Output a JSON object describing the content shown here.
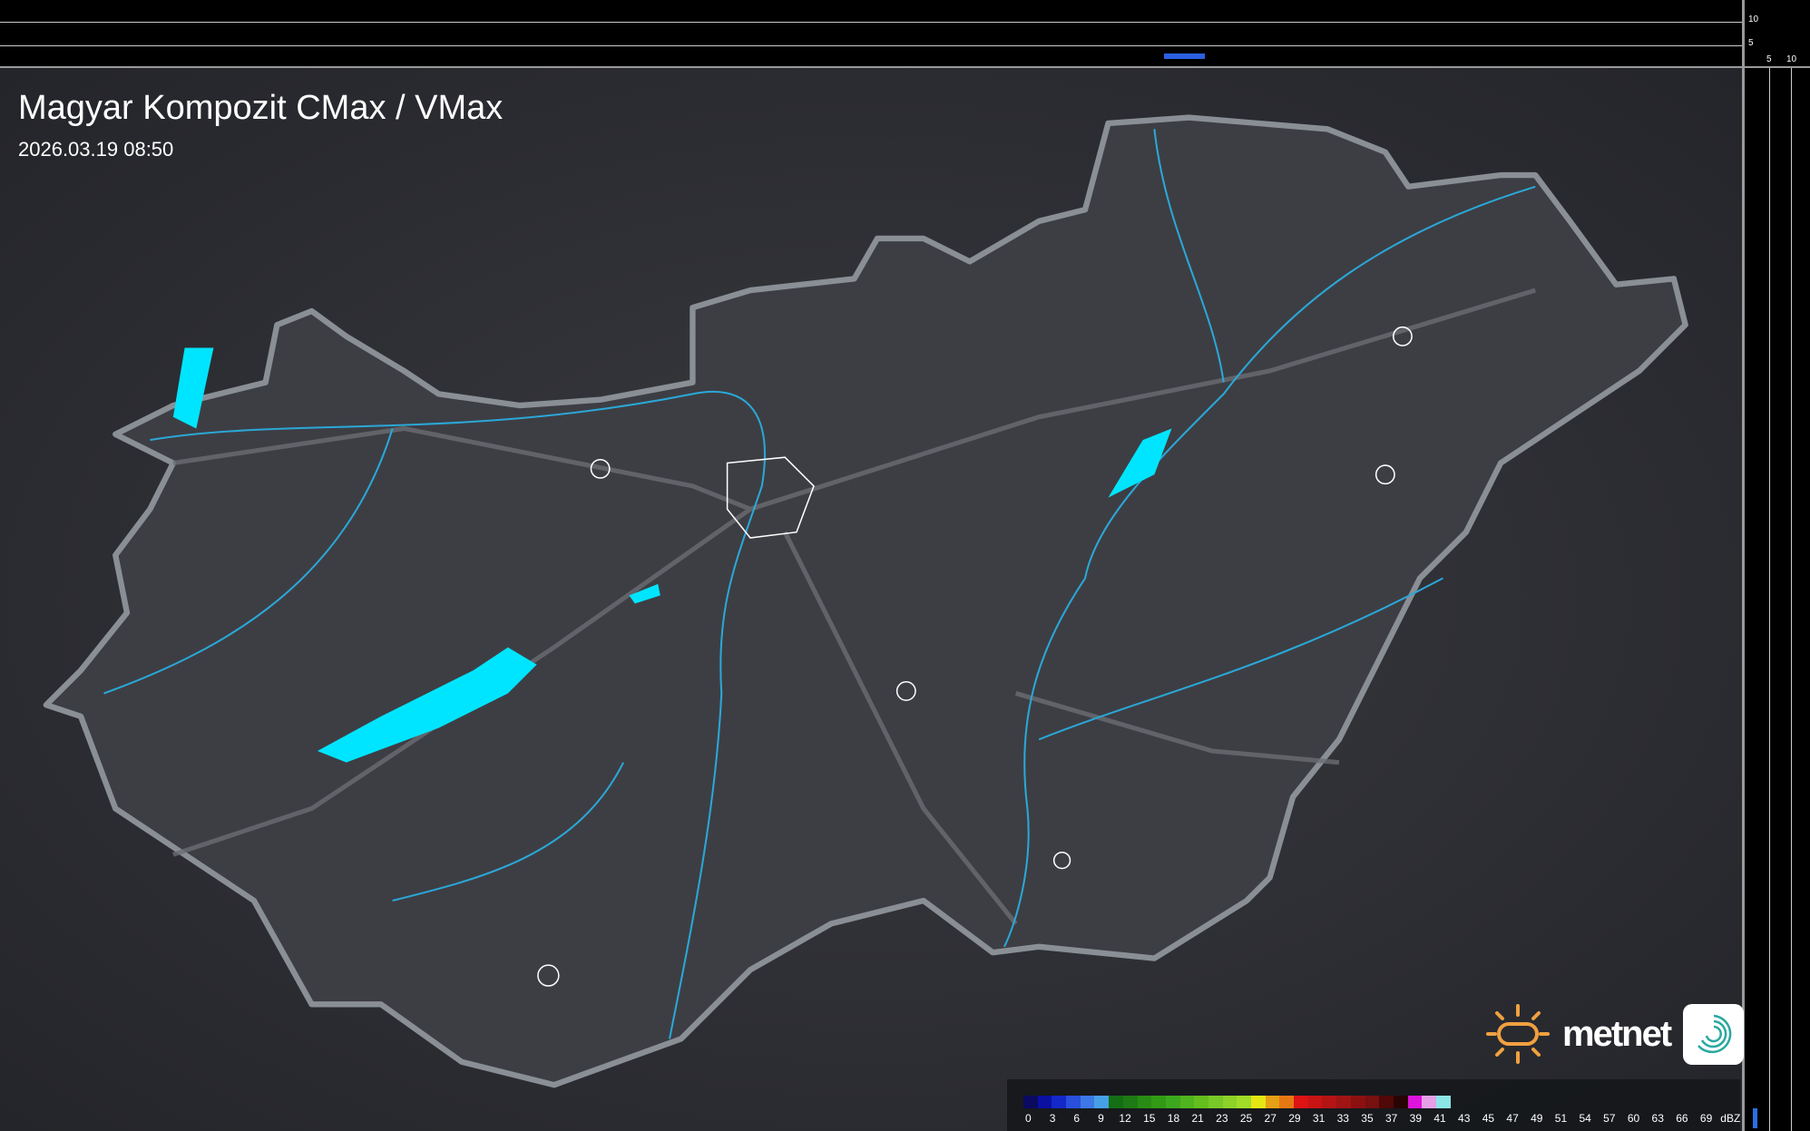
{
  "title": "Magyar Kompozit CMax / VMax",
  "timestamp": "2026.03.19 08:50",
  "top_profile": {
    "ticks": [
      "10",
      "5"
    ]
  },
  "side_profile": {
    "ticks": [
      "5",
      "10"
    ]
  },
  "legend": {
    "unit": "dBZ",
    "labels": [
      "0",
      "3",
      "6",
      "9",
      "12",
      "15",
      "18",
      "21",
      "23",
      "25",
      "27",
      "29",
      "31",
      "33",
      "35",
      "37",
      "39",
      "41",
      "43",
      "45",
      "47",
      "49",
      "51",
      "54",
      "57",
      "60",
      "63",
      "66",
      "69"
    ],
    "colors": [
      "#0a0a60",
      "#0a10a0",
      "#1428c8",
      "#2850dc",
      "#3c78e6",
      "#46a0e6",
      "#146e14",
      "#1e7a14",
      "#288c14",
      "#329a14",
      "#3ca81e",
      "#50b41e",
      "#64be1e",
      "#78c828",
      "#8cd228",
      "#a0dc28",
      "#e6e614",
      "#e6a014",
      "#e67814",
      "#dc1414",
      "#c81414",
      "#b41414",
      "#a01414",
      "#8c1010",
      "#781010",
      "#500808",
      "#280404",
      "#dc14dc",
      "#e6a0e6",
      "#8ce6e6"
    ]
  },
  "brand": {
    "name": "metnet",
    "accent": "#f0a040",
    "app_color": "#2aa8a0"
  },
  "colors": {
    "water": "#00e5ff",
    "rivers": "#2aa8d8",
    "border": "#8a8f96",
    "terrain": "#35363b"
  }
}
